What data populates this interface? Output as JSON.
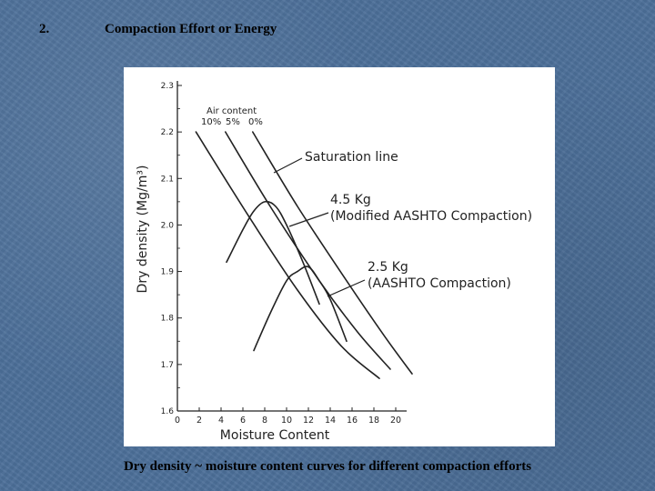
{
  "slide": {
    "number": "2.",
    "title": "Compaction Effort or Energy",
    "caption": "Dry density ~ moisture content curves for different compaction efforts"
  },
  "chart_data": {
    "type": "line",
    "title": "",
    "xlabel": "Moisture Content",
    "ylabel": "Dry density (Mg/m³)",
    "xlim": [
      0,
      21
    ],
    "ylim": [
      1.6,
      2.3
    ],
    "x_ticks": [
      "0",
      "2",
      "4",
      "6",
      "8",
      "10",
      "12",
      "14",
      "16",
      "18",
      "20"
    ],
    "y_ticks": [
      "1.6",
      "1.7",
      "1.8",
      "1.9",
      "2.0",
      "2.1",
      "2.2",
      "2.3"
    ],
    "grid": false,
    "air_content_title": "Air content",
    "series": [
      {
        "name": "10%",
        "role": "air-void",
        "x": [
          1.7,
          6.5,
          11,
          15,
          18.5
        ],
        "y": [
          2.2,
          2.02,
          1.86,
          1.74,
          1.67
        ]
      },
      {
        "name": "5%",
        "role": "air-void",
        "x": [
          4.4,
          8.5,
          13,
          16.5,
          19.5
        ],
        "y": [
          2.2,
          2.04,
          1.88,
          1.77,
          1.69
        ]
      },
      {
        "name": "0%",
        "role": "air-void",
        "x": [
          6.9,
          11,
          15.5,
          19,
          21.5
        ],
        "y": [
          2.2,
          2.04,
          1.88,
          1.76,
          1.68
        ]
      },
      {
        "name": "",
        "role": "compaction",
        "x": [
          4.5,
          6,
          7,
          8,
          9,
          10,
          11.5,
          13
        ],
        "y": [
          1.92,
          1.99,
          2.03,
          2.05,
          2.04,
          2.0,
          1.92,
          1.83
        ]
      },
      {
        "name": "",
        "role": "compaction",
        "x": [
          7,
          8.5,
          10,
          11,
          12,
          13,
          14,
          15.5
        ],
        "y": [
          1.73,
          1.81,
          1.88,
          1.9,
          1.91,
          1.88,
          1.84,
          1.75
        ]
      }
    ],
    "annotations": [
      {
        "text": "Saturation line"
      },
      {
        "line1": "4.5 Kg",
        "line2": "(Modified AASHTO Compaction)"
      },
      {
        "line1": "2.5 Kg",
        "line2": "(AASHTO Compaction)"
      }
    ]
  }
}
